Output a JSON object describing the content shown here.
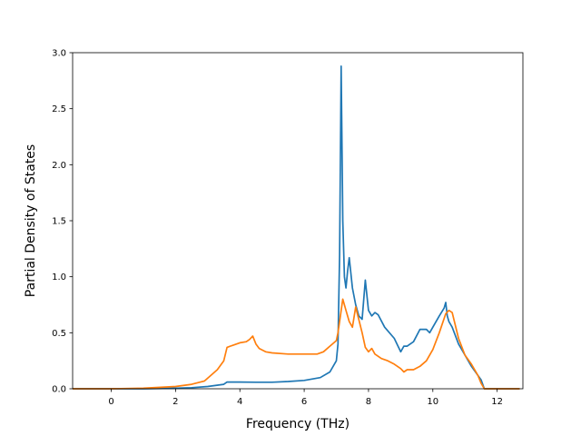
{
  "chart_data": {
    "type": "line",
    "title": "",
    "xlabel": "Frequency (THz)",
    "ylabel": "Partial Density of States",
    "xlim": [
      -1.2,
      12.8
    ],
    "ylim": [
      0,
      3.0
    ],
    "xticks": [
      0,
      2,
      4,
      6,
      8,
      10,
      12
    ],
    "xtick_labels": [
      "0",
      "2",
      "4",
      "6",
      "8",
      "10",
      "12"
    ],
    "yticks": [
      0.0,
      0.5,
      1.0,
      1.5,
      2.0,
      2.5,
      3.0
    ],
    "ytick_labels": [
      "0.0",
      "0.5",
      "1.0",
      "1.5",
      "2.0",
      "2.5",
      "3.0"
    ],
    "grid": false,
    "legend": "none",
    "series": [
      {
        "color": "#1f77b4",
        "x": [
          -1.2,
          0,
          1,
          2,
          2.5,
          3,
          3.5,
          3.6,
          4,
          4.5,
          5,
          5.5,
          6,
          6.5,
          6.8,
          7.0,
          7.05,
          7.1,
          7.15,
          7.2,
          7.25,
          7.3,
          7.35,
          7.4,
          7.5,
          7.6,
          7.7,
          7.8,
          7.9,
          8.0,
          8.1,
          8.2,
          8.3,
          8.5,
          8.8,
          9.0,
          9.1,
          9.2,
          9.4,
          9.6,
          9.8,
          9.9,
          10.0,
          10.2,
          10.35,
          10.4,
          10.45,
          10.5,
          10.6,
          10.8,
          11.0,
          11.2,
          11.5,
          11.6,
          12.0,
          12.7
        ],
        "y": [
          0.0,
          0.0,
          0.0,
          0.005,
          0.01,
          0.02,
          0.04,
          0.06,
          0.06,
          0.058,
          0.058,
          0.065,
          0.075,
          0.1,
          0.15,
          0.25,
          0.4,
          1.2,
          2.88,
          1.5,
          1.0,
          0.9,
          1.05,
          1.17,
          0.9,
          0.75,
          0.65,
          0.62,
          0.97,
          0.7,
          0.65,
          0.68,
          0.66,
          0.55,
          0.45,
          0.33,
          0.38,
          0.38,
          0.42,
          0.53,
          0.53,
          0.5,
          0.55,
          0.65,
          0.72,
          0.77,
          0.65,
          0.6,
          0.55,
          0.4,
          0.3,
          0.2,
          0.08,
          0.0,
          0.0,
          0.0
        ]
      },
      {
        "color": "#ff7f0e",
        "x": [
          -1.2,
          0,
          1,
          2,
          2.5,
          2.9,
          3.1,
          3.3,
          3.5,
          3.6,
          3.8,
          4.0,
          4.2,
          4.3,
          4.4,
          4.5,
          4.6,
          4.8,
          5.0,
          5.5,
          6.0,
          6.4,
          6.6,
          6.8,
          7.0,
          7.05,
          7.1,
          7.2,
          7.3,
          7.4,
          7.5,
          7.6,
          7.8,
          7.9,
          8.0,
          8.1,
          8.2,
          8.4,
          8.6,
          8.8,
          9.0,
          9.1,
          9.2,
          9.4,
          9.6,
          9.8,
          10.0,
          10.2,
          10.4,
          10.5,
          10.6,
          10.8,
          11.0,
          11.2,
          11.4,
          11.5,
          11.6,
          12.0,
          12.7
        ],
        "y": [
          0.0,
          0.0,
          0.005,
          0.02,
          0.04,
          0.07,
          0.12,
          0.17,
          0.25,
          0.37,
          0.39,
          0.41,
          0.42,
          0.44,
          0.47,
          0.4,
          0.36,
          0.33,
          0.32,
          0.31,
          0.31,
          0.31,
          0.33,
          0.38,
          0.43,
          0.5,
          0.6,
          0.8,
          0.7,
          0.6,
          0.55,
          0.73,
          0.5,
          0.37,
          0.33,
          0.36,
          0.31,
          0.27,
          0.25,
          0.22,
          0.18,
          0.15,
          0.17,
          0.17,
          0.2,
          0.25,
          0.35,
          0.5,
          0.67,
          0.7,
          0.68,
          0.45,
          0.3,
          0.22,
          0.12,
          0.05,
          0.0,
          0.0,
          0.0
        ]
      }
    ]
  }
}
